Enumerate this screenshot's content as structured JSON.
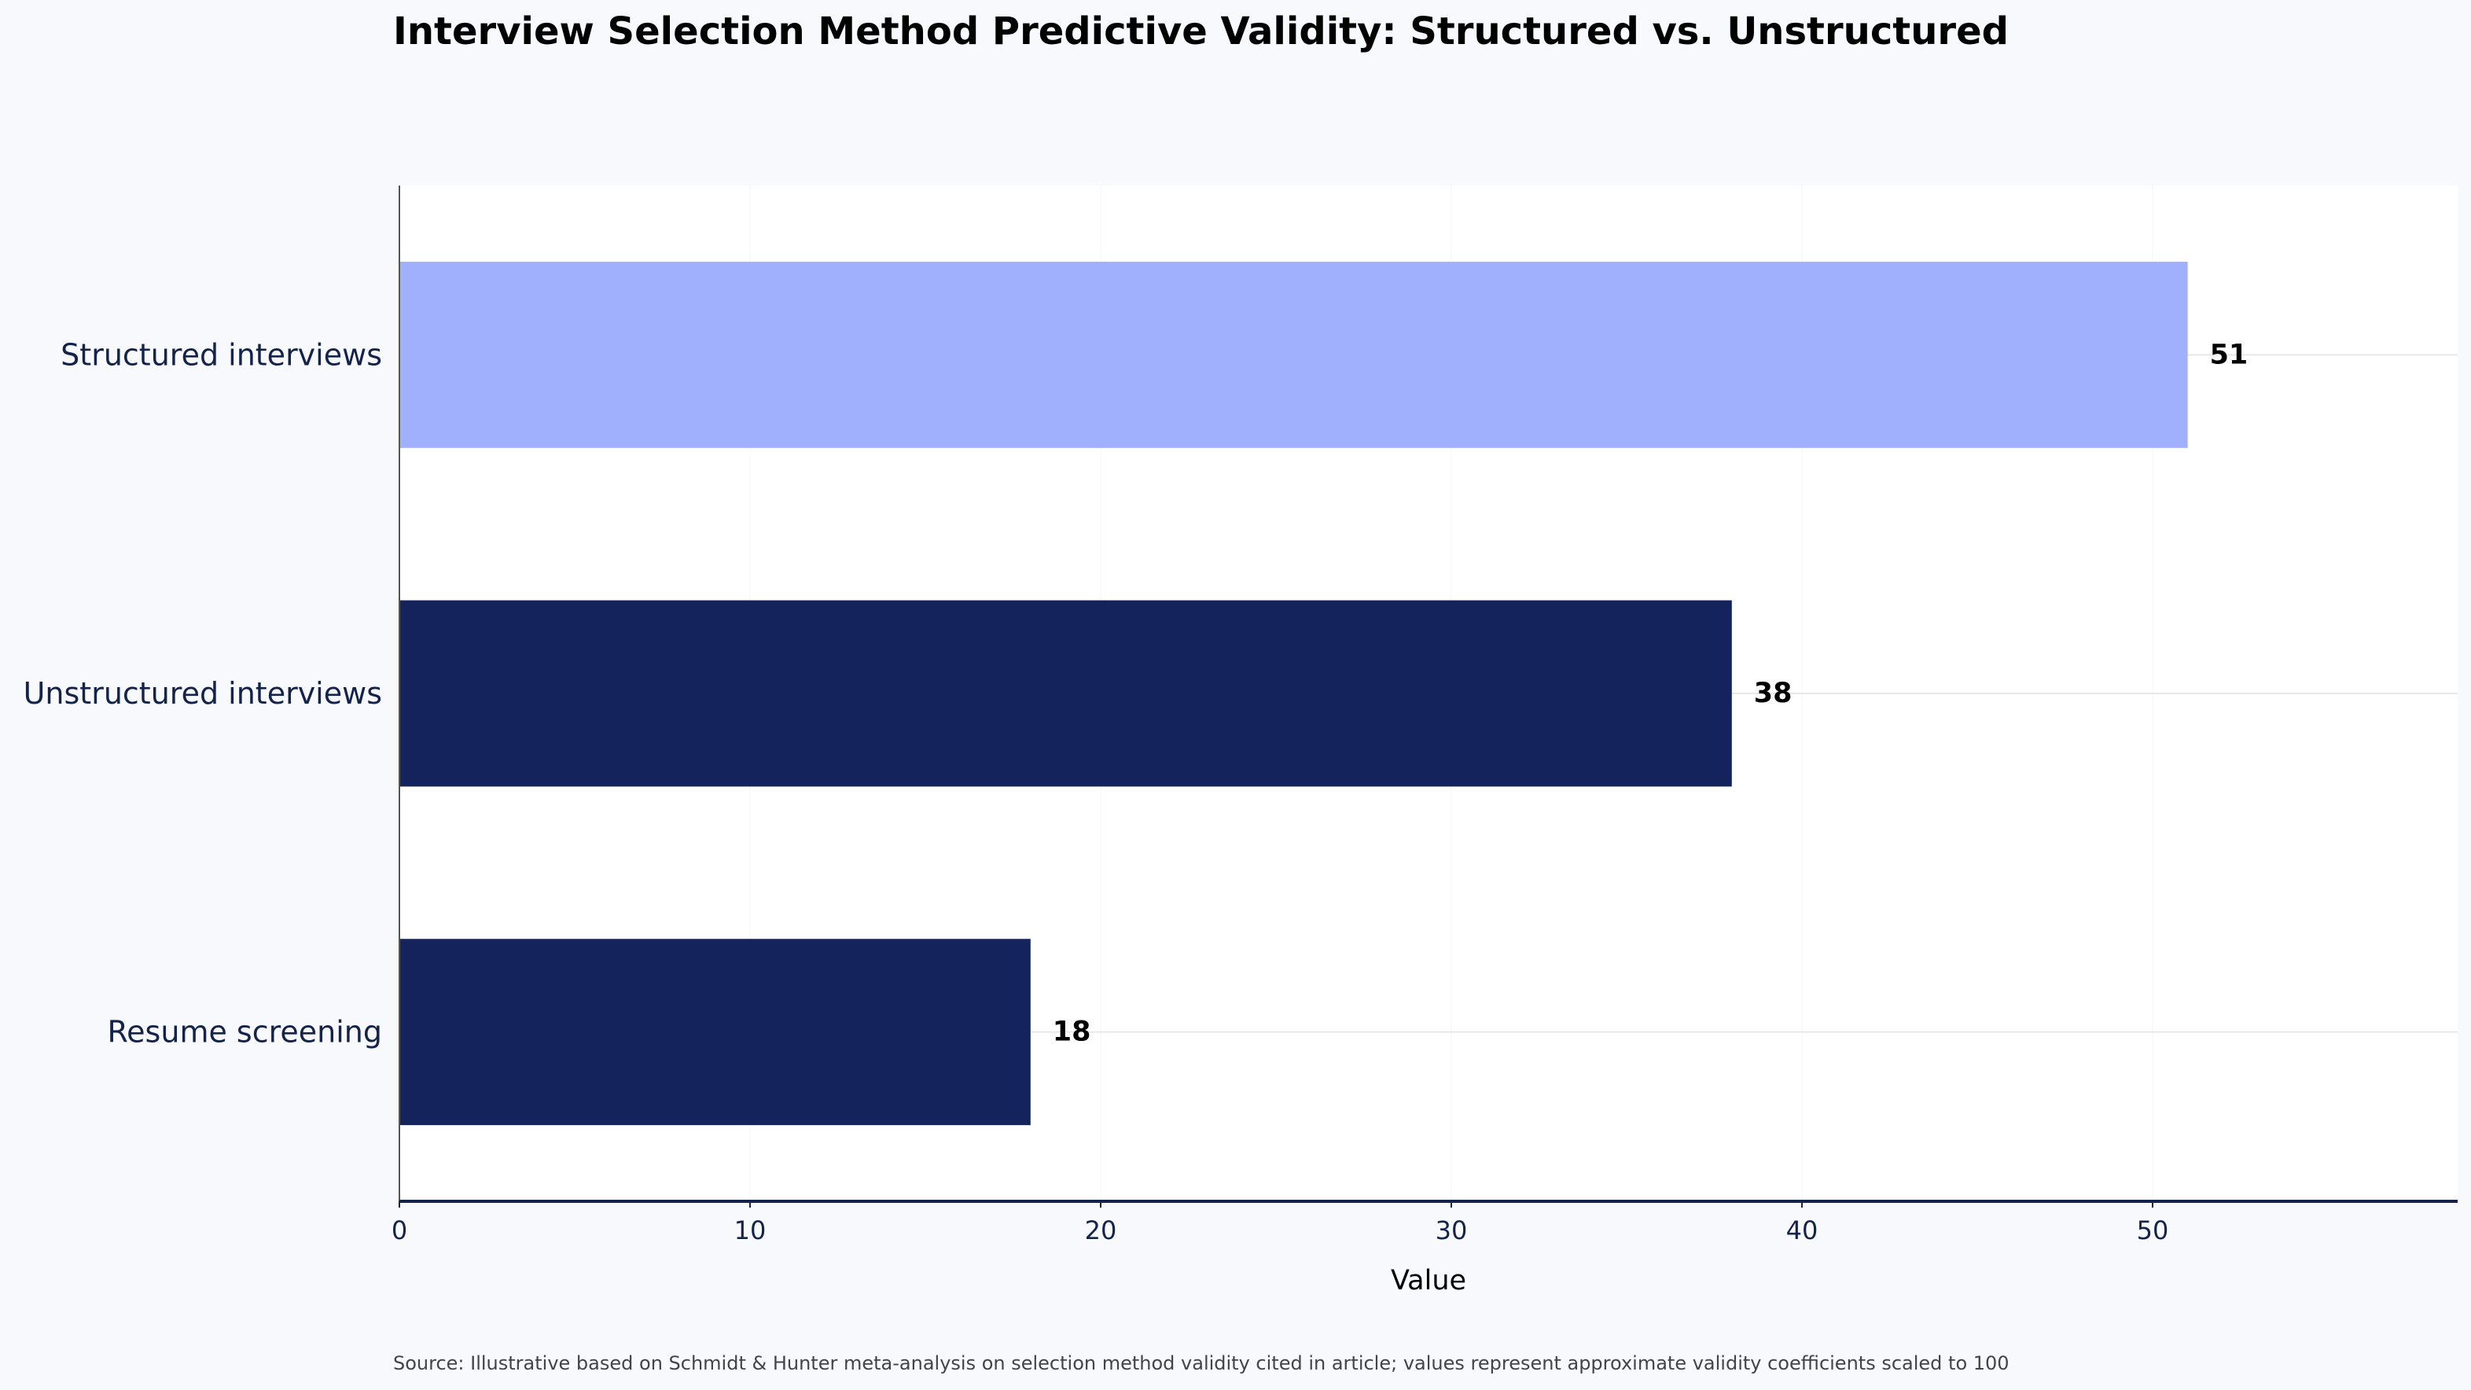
{
  "chart_data": {
    "type": "bar",
    "orientation": "horizontal",
    "title": "Interview Selection Method Predictive Validity: Structured vs. Unstructured",
    "xlabel": "Value",
    "ylabel": "",
    "categories": [
      "Structured interviews",
      "Unstructured interviews",
      "Resume screening"
    ],
    "values": [
      51,
      38,
      18
    ],
    "value_labels": [
      "51",
      "38",
      "18"
    ],
    "highlight_category": "Structured interviews",
    "colors": {
      "highlight": "#a0b0fc",
      "default": "#14235c",
      "axis": "#14234b",
      "grid": "#e8e8e8",
      "plot_background": "#ffffff",
      "page_background": "#f7f9fc"
    },
    "xlim": [
      0,
      58.7
    ],
    "xticks": [
      0,
      10,
      20,
      30,
      40,
      50
    ],
    "xtick_labels": [
      "0",
      "10",
      "20",
      "30",
      "40",
      "50"
    ],
    "grid": true,
    "legend": "none",
    "source": "Source: Illustrative based on Schmidt & Hunter meta-analysis on selection method validity cited in article; values represent approximate validity coefficients scaled to 100"
  }
}
